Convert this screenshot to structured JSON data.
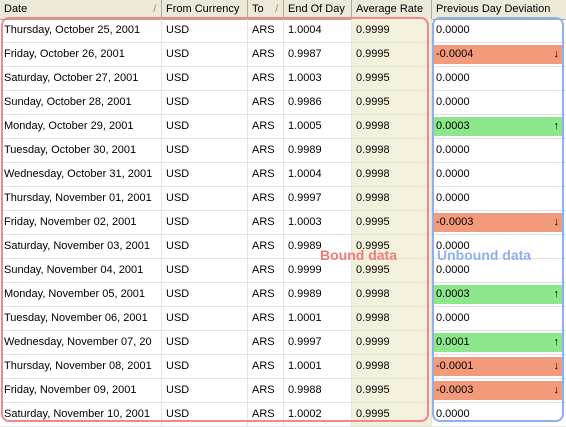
{
  "columns": {
    "date": "Date",
    "from_currency": "From Currency",
    "to": "To",
    "end_of_day": "End Of Day",
    "average_rate": "Average Rate",
    "previous_day_deviation": "Previous Day Deviation"
  },
  "sort_glyph": "/",
  "overlay": {
    "bound_label": "Bound data",
    "unbound_label": "Unbound data"
  },
  "colors": {
    "negative": "#f39a7a",
    "positive": "#8ce68c",
    "bound": "#f08a8a",
    "unbound": "#8fb0f0"
  },
  "rows": [
    {
      "date": "Thursday, October 25, 2001",
      "from": "USD",
      "to": "ARS",
      "eod": "1.0004",
      "avg": "0.9999",
      "dev": "0.0000",
      "trend": "none"
    },
    {
      "date": "Friday, October 26, 2001",
      "from": "USD",
      "to": "ARS",
      "eod": "0.9987",
      "avg": "0.9995",
      "dev": "-0.0004",
      "trend": "down"
    },
    {
      "date": "Saturday, October 27, 2001",
      "from": "USD",
      "to": "ARS",
      "eod": "1.0003",
      "avg": "0.9995",
      "dev": "0.0000",
      "trend": "none"
    },
    {
      "date": "Sunday, October 28, 2001",
      "from": "USD",
      "to": "ARS",
      "eod": "0.9986",
      "avg": "0.9995",
      "dev": "0.0000",
      "trend": "none"
    },
    {
      "date": "Monday, October 29, 2001",
      "from": "USD",
      "to": "ARS",
      "eod": "1.0005",
      "avg": "0.9998",
      "dev": "0.0003",
      "trend": "up"
    },
    {
      "date": "Tuesday, October 30, 2001",
      "from": "USD",
      "to": "ARS",
      "eod": "0.9989",
      "avg": "0.9998",
      "dev": "0.0000",
      "trend": "none"
    },
    {
      "date": "Wednesday, October 31, 2001",
      "from": "USD",
      "to": "ARS",
      "eod": "1.0004",
      "avg": "0.9998",
      "dev": "0.0000",
      "trend": "none"
    },
    {
      "date": "Thursday, November 01, 2001",
      "from": "USD",
      "to": "ARS",
      "eod": "0.9997",
      "avg": "0.9998",
      "dev": "0.0000",
      "trend": "none"
    },
    {
      "date": "Friday, November 02, 2001",
      "from": "USD",
      "to": "ARS",
      "eod": "1.0003",
      "avg": "0.9995",
      "dev": "-0.0003",
      "trend": "down"
    },
    {
      "date": "Saturday, November 03, 2001",
      "from": "USD",
      "to": "ARS",
      "eod": "0.9989",
      "avg": "0.9995",
      "dev": "0.0000",
      "trend": "none"
    },
    {
      "date": "Sunday, November 04, 2001",
      "from": "USD",
      "to": "ARS",
      "eod": "0.9999",
      "avg": "0.9995",
      "dev": "0.0000",
      "trend": "none"
    },
    {
      "date": "Monday, November 05, 2001",
      "from": "USD",
      "to": "ARS",
      "eod": "0.9989",
      "avg": "0.9998",
      "dev": "0.0003",
      "trend": "up"
    },
    {
      "date": "Tuesday, November 06, 2001",
      "from": "USD",
      "to": "ARS",
      "eod": "1.0001",
      "avg": "0.9998",
      "dev": "0.0000",
      "trend": "none"
    },
    {
      "date": "Wednesday, November 07, 20",
      "from": "USD",
      "to": "ARS",
      "eod": "0.9997",
      "avg": "0.9999",
      "dev": "0.0001",
      "trend": "up"
    },
    {
      "date": "Thursday, November 08, 2001",
      "from": "USD",
      "to": "ARS",
      "eod": "1.0001",
      "avg": "0.9998",
      "dev": "-0.0001",
      "trend": "down"
    },
    {
      "date": "Friday, November 09, 2001",
      "from": "USD",
      "to": "ARS",
      "eod": "0.9988",
      "avg": "0.9995",
      "dev": "-0.0003",
      "trend": "down"
    },
    {
      "date": "Saturday, November 10, 2001",
      "from": "USD",
      "to": "ARS",
      "eod": "1.0002",
      "avg": "0.9995",
      "dev": "0.0000",
      "trend": "none"
    }
  ]
}
